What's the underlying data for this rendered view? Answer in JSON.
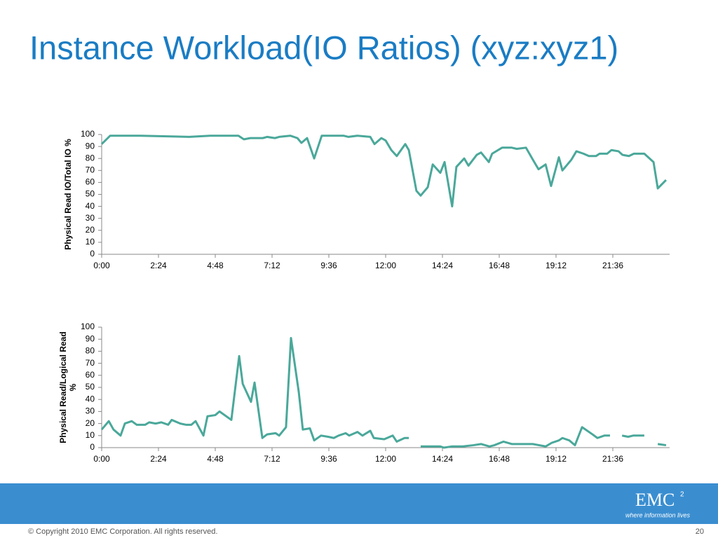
{
  "slide_title": "Instance Workload(IO Ratios)  (xyz:xyz1)",
  "chart_data": [
    {
      "type": "line",
      "ylabel": "Physical Read IO/Total IO %",
      "xlim": [
        0,
        24
      ],
      "ylim": [
        0,
        100
      ],
      "xticks": [
        {
          "value": 0,
          "label": "0:00"
        },
        {
          "value": 2.4,
          "label": "2:24"
        },
        {
          "value": 4.8,
          "label": "4:48"
        },
        {
          "value": 7.2,
          "label": "7:12"
        },
        {
          "value": 9.6,
          "label": "9:36"
        },
        {
          "value": 12,
          "label": "12:00"
        },
        {
          "value": 14.4,
          "label": "14:24"
        },
        {
          "value": 16.8,
          "label": "16:48"
        },
        {
          "value": 19.2,
          "label": "19:12"
        },
        {
          "value": 21.6,
          "label": "21:36"
        }
      ],
      "yticks": [
        0,
        10,
        20,
        30,
        40,
        50,
        60,
        70,
        80,
        90,
        100
      ],
      "x": [
        0,
        0.36,
        0.89,
        1.63,
        3.7,
        4.59,
        5.78,
        5.93,
        6.01,
        6.28,
        6.81,
        6.99,
        7.32,
        7.5,
        7.97,
        8.27,
        8.44,
        8.68,
        8.98,
        9.3,
        10.22,
        10.43,
        10.81,
        11.35,
        11.53,
        11.82,
        12.0,
        12.24,
        12.47,
        12.83,
        12.98,
        13.3,
        13.48,
        13.78,
        13.99,
        14.31,
        14.49,
        14.81,
        14.99,
        15.32,
        15.5,
        15.85,
        16.03,
        16.36,
        16.5,
        16.92,
        17.33,
        17.54,
        17.93,
        18.22,
        18.46,
        18.76,
        18.99,
        19.32,
        19.47,
        19.85,
        20.06,
        20.36,
        20.59,
        20.89,
        21.04,
        21.36,
        21.54,
        21.84,
        22.01,
        22.28,
        22.49,
        22.93,
        23.32,
        23.5,
        23.85
      ],
      "series": [
        {
          "color": "#4aa89a",
          "values": [
            92,
            99,
            99,
            99,
            98,
            99,
            99,
            97,
            96,
            97,
            97,
            98,
            97,
            98,
            99,
            97,
            93,
            97,
            80,
            99,
            99,
            98,
            99,
            98,
            92,
            97,
            95,
            87,
            82,
            92,
            87,
            53,
            49,
            56,
            75,
            68,
            77,
            40,
            73,
            80,
            74,
            83,
            85,
            77,
            84,
            89,
            89,
            88,
            89,
            79,
            71,
            75,
            57,
            81,
            70,
            79,
            86,
            84,
            82,
            82,
            84,
            84,
            87,
            86,
            83,
            82,
            84,
            84,
            77,
            55,
            62
          ]
        }
      ]
    },
    {
      "type": "line",
      "ylabel": [
        "Physical Read/Logical Read",
        "%"
      ],
      "xlim": [
        0,
        24
      ],
      "ylim": [
        0,
        100
      ],
      "xticks": [
        {
          "value": 0,
          "label": "0:00"
        },
        {
          "value": 2.4,
          "label": "2:24"
        },
        {
          "value": 4.8,
          "label": "4:48"
        },
        {
          "value": 7.2,
          "label": "7:12"
        },
        {
          "value": 9.6,
          "label": "9:36"
        },
        {
          "value": 12,
          "label": "12:00"
        },
        {
          "value": 14.4,
          "label": "14:24"
        },
        {
          "value": 16.8,
          "label": "16:48"
        },
        {
          "value": 19.2,
          "label": "19:12"
        },
        {
          "value": 21.6,
          "label": "21:36"
        }
      ],
      "yticks": [
        0,
        10,
        20,
        30,
        40,
        50,
        60,
        70,
        80,
        90,
        100
      ],
      "x": [
        0,
        0.3,
        0.5,
        0.8,
        0.98,
        1.27,
        1.48,
        1.84,
        2.01,
        2.28,
        2.52,
        2.81,
        2.96,
        3.32,
        3.56,
        3.79,
        3.97,
        4.3,
        4.47,
        4.8,
        4.98,
        5.48,
        5.81,
        5.96,
        6.31,
        6.46,
        6.79,
        6.99,
        7.35,
        7.5,
        7.79,
        8.0,
        8.33,
        8.5,
        8.8,
        8.98,
        9.27,
        9.57,
        9.81,
        10.01,
        10.31,
        10.46,
        10.81,
        11.02,
        11.35,
        11.5,
        11.94,
        12.3,
        12.47,
        12.8,
        12.98,
        13.19,
        13.48,
        13.93,
        14.31,
        14.46,
        14.81,
        15.26,
        15.7,
        16.03,
        16.39,
        16.59,
        16.98,
        17.33,
        17.63,
        17.93,
        18.22,
        18.76,
        19.02,
        19.32,
        19.47,
        19.76,
        20.0,
        20.3,
        20.74,
        20.95,
        21.24,
        21.48,
        21.8,
        21.99,
        22.25,
        22.46,
        22.93,
        23.2,
        23.5,
        23.85
      ],
      "series": [
        {
          "color": "#4aa89a",
          "values": [
            15,
            22,
            15,
            10,
            20,
            22,
            19,
            19,
            21,
            20,
            21,
            19,
            23,
            20,
            19,
            19,
            22,
            10,
            26,
            27,
            30,
            23,
            76,
            53,
            38,
            54,
            8,
            11,
            12,
            10,
            17,
            91,
            46,
            15,
            16,
            6,
            10,
            9,
            8,
            10,
            12,
            10,
            13,
            10,
            14,
            8,
            7,
            10,
            5,
            8,
            8,
            null,
            1,
            1,
            1,
            0,
            1,
            1,
            2,
            3,
            1,
            2,
            5,
            3,
            3,
            3,
            3,
            1,
            4,
            6,
            8,
            6,
            2,
            17,
            11,
            8,
            10,
            10,
            null,
            10,
            9,
            10,
            10,
            null,
            3,
            2
          ]
        }
      ]
    }
  ],
  "footer": {
    "logo": "EMC",
    "logo_sup": "2",
    "tagline": "where information lives",
    "copyright": "© Copyright 2010  EMC Corporation.  All rights reserved.",
    "page": "20"
  }
}
